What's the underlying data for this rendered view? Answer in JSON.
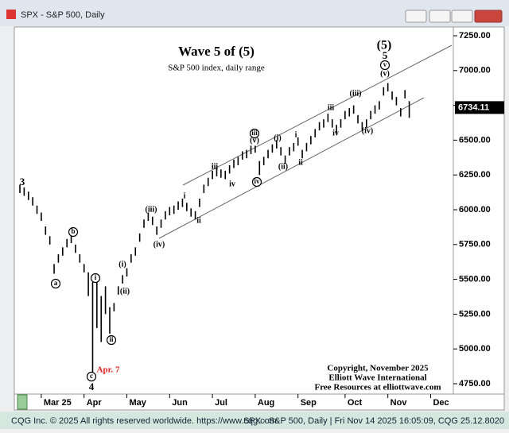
{
  "window_title": "SPX - S&P 500, Daily",
  "footer_left": "CQG Inc. © 2025 All rights reserved worldwide. https://www.cqg.com",
  "footer_right": "SPX - S&P 500, Daily | Fri Nov 14 2025 16:05:09, CQG 25.12.8020",
  "chart_data": {
    "type": "range",
    "title": "Wave 5 of (5)",
    "subtitle": "S&P 500 index, daily range",
    "copyright": [
      "Copyright, November 2025",
      "Elliott Wave International",
      "Free Resources at elliottwave.com"
    ],
    "categories": [
      null,
      null,
      null,
      null,
      null,
      "Mar 25",
      null,
      null,
      null,
      null,
      null,
      null,
      null,
      null,
      null,
      "Apr",
      null,
      null,
      null,
      null,
      null,
      null,
      null,
      null,
      null,
      "May",
      null,
      null,
      null,
      null,
      null,
      null,
      null,
      null,
      null,
      "Jun",
      null,
      null,
      null,
      null,
      null,
      null,
      null,
      null,
      null,
      "Jul",
      null,
      null,
      null,
      null,
      null,
      null,
      null,
      null,
      null,
      "Aug",
      null,
      null,
      null,
      null,
      null,
      null,
      null,
      null,
      null,
      "Sep",
      null,
      null,
      null,
      null,
      null,
      null,
      null,
      null,
      null,
      null,
      "Oct",
      null,
      null,
      null,
      null,
      null,
      null,
      null,
      null,
      null,
      "Nov",
      null,
      null,
      null,
      null,
      null,
      null,
      null,
      null,
      null,
      "Dec"
    ],
    "high": [
      6180,
      6160,
      6130,
      6090,
      6030,
      5980,
      5880,
      5810,
      5610,
      5680,
      5730,
      5790,
      5820,
      5750,
      5680,
      5610,
      5550,
      5480,
      5480,
      5380,
      5450,
      5300,
      5330,
      5450,
      5530,
      5580,
      5680,
      5730,
      5830,
      5930,
      5980,
      5950,
      5880,
      5930,
      5990,
      6020,
      6030,
      6060,
      6080,
      6050,
      6010,
      5990,
      6080,
      6180,
      6230,
      6280,
      6300,
      6290,
      6280,
      6320,
      6360,
      6380,
      6420,
      6430,
      6460,
      6460,
      6350,
      6380,
      6430,
      6470,
      6500,
      6450,
      6390,
      6450,
      6480,
      6520,
      6430,
      6480,
      6530,
      6580,
      6630,
      6650,
      6690,
      6650,
      6610,
      6650,
      6710,
      6730,
      6750,
      6680,
      6630,
      6650,
      6710,
      6750,
      6780,
      6880,
      6910,
      6850,
      6810,
      6730,
      6860,
      6780,
      null,
      null,
      null,
      null,
      null
    ],
    "low": [
      6120,
      6100,
      6070,
      6030,
      5970,
      5920,
      5820,
      5750,
      5540,
      5620,
      5670,
      5730,
      5760,
      5690,
      5620,
      5550,
      5380,
      4835,
      5150,
      5050,
      5250,
      5110,
      5270,
      5390,
      5470,
      5520,
      5620,
      5670,
      5770,
      5870,
      5920,
      5890,
      5820,
      5870,
      5930,
      5960,
      5970,
      6000,
      6020,
      5990,
      5950,
      5930,
      6020,
      6120,
      6170,
      6220,
      6240,
      6230,
      6220,
      6260,
      6300,
      6320,
      6360,
      6370,
      6400,
      6410,
      6250,
      6320,
      6370,
      6410,
      6440,
      6390,
      6330,
      6390,
      6420,
      6460,
      6370,
      6420,
      6470,
      6520,
      6570,
      6590,
      6630,
      6590,
      6550,
      6590,
      6650,
      6670,
      6690,
      6620,
      6570,
      6590,
      6650,
      6690,
      6720,
      6820,
      6850,
      6790,
      6750,
      6670,
      6800,
      6660,
      null,
      null,
      null,
      null,
      null
    ],
    "color": "#000000",
    "last_price": 6734.11,
    "ylim": [
      4750,
      7250
    ],
    "yticks": [
      {
        "value": 4750,
        "label": "4750.00"
      },
      {
        "value": 5000,
        "label": "5000.00"
      },
      {
        "value": 5250,
        "label": "5250.00"
      },
      {
        "value": 5500,
        "label": "5500.00"
      },
      {
        "value": 5750,
        "label": "5750.00"
      },
      {
        "value": 6000,
        "label": "6000.00"
      },
      {
        "value": 6250,
        "label": "6250.00"
      },
      {
        "value": 6500,
        "label": "6500.00"
      },
      {
        "value": 6750,
        "label": "6750.00"
      },
      {
        "value": 7000,
        "label": "7000.00"
      },
      {
        "value": 7250,
        "label": "7250.00"
      }
    ],
    "annotations": [
      "3",
      "a",
      "b",
      "c",
      "4",
      "Apr. 7",
      "i",
      "ii",
      "(i)",
      "(ii)",
      "(iii)",
      "(iv)",
      "i",
      "ii",
      "iii",
      "iv",
      "(v)",
      "iii",
      "iv",
      "(i)",
      "(ii)",
      "i",
      "ii",
      "iii",
      "iv",
      "(iii)",
      "(iv)",
      "(v)",
      "v",
      "5",
      "(5)"
    ]
  }
}
